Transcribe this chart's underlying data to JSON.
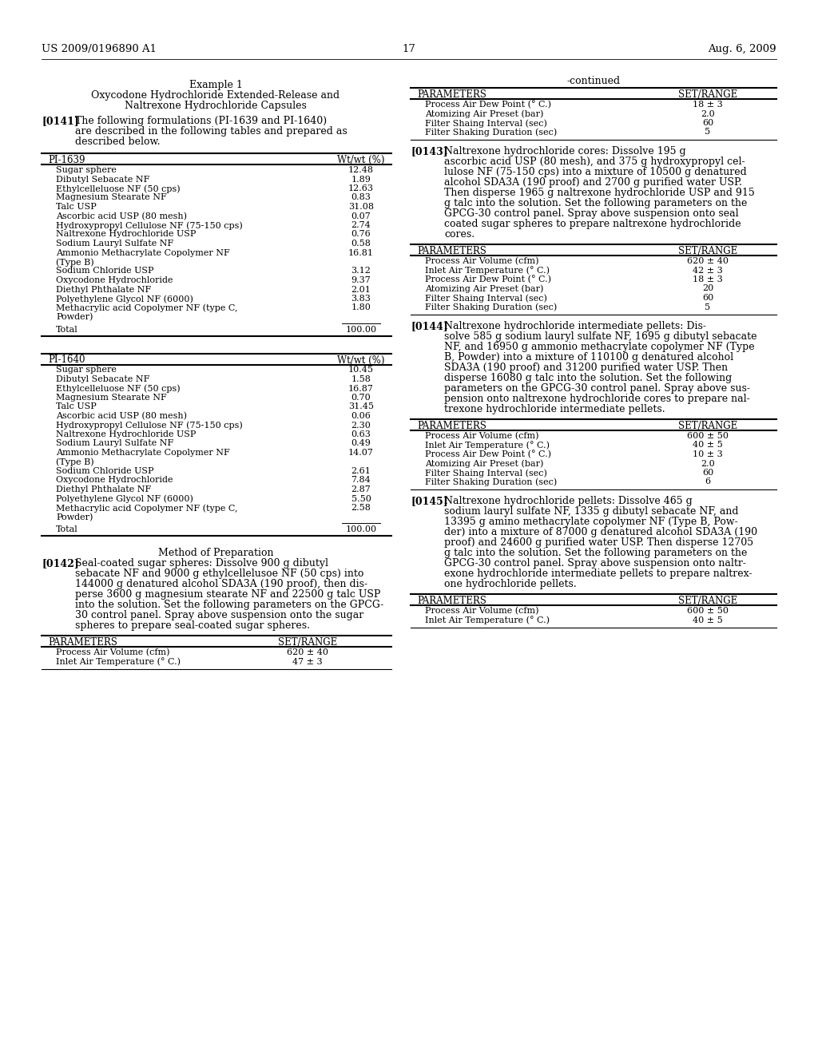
{
  "bg_color": "#ffffff",
  "text_color": "#000000",
  "header_left": "US 2009/0196890 A1",
  "header_right": "Aug. 6, 2009",
  "page_number": "17",
  "example_title": "Example 1",
  "example_subtitle1": "Oxycodone Hydrochloride Extended-Release and",
  "example_subtitle2": "Naltrexone Hydrochloride Capsules",
  "para141_label": "[0141]",
  "table1_header_left": "PI-1639",
  "table1_header_right": "Wt/wt (%)",
  "table1_rows": [
    [
      "Sugar sphere",
      "12.48"
    ],
    [
      "Dibutyl Sebacate NF",
      "1.89"
    ],
    [
      "Ethylcelleluose NF (50 cps)",
      "12.63"
    ],
    [
      "Magnesium Stearate NF",
      "0.83"
    ],
    [
      "Talc USP",
      "31.08"
    ],
    [
      "Ascorbic acid USP (80 mesh)",
      "0.07"
    ],
    [
      "Hydroxypropyl Cellulose NF (75-150 cps)",
      "2.74"
    ],
    [
      "Naltrexone Hydrochloride USP",
      "0.76"
    ],
    [
      "Sodium Lauryl Sulfate NF",
      "0.58"
    ],
    [
      "Ammonio Methacrylate Copolymer NF",
      "16.81"
    ],
    [
      "(Type B)",
      ""
    ],
    [
      "Sodium Chloride USP",
      "3.12"
    ],
    [
      "Oxycodone Hydrochloride",
      "9.37"
    ],
    [
      "Diethyl Phthalate NF",
      "2.01"
    ],
    [
      "Polyethylene Glycol NF (6000)",
      "3.83"
    ],
    [
      "Methacrylic acid Copolymer NF (type C,",
      "1.80"
    ],
    [
      "Powder)",
      ""
    ]
  ],
  "table1_total": "100.00",
  "table2_header_left": "PI-1640",
  "table2_header_right": "Wt/wt (%)",
  "table2_rows": [
    [
      "Sugar sphere",
      "10.45"
    ],
    [
      "Dibutyl Sebacate NF",
      "1.58"
    ],
    [
      "Ethylcelleluose NF (50 cps)",
      "16.87"
    ],
    [
      "Magnesium Stearate NF",
      "0.70"
    ],
    [
      "Talc USP",
      "31.45"
    ],
    [
      "Ascorbic acid USP (80 mesh)",
      "0.06"
    ],
    [
      "Hydroxypropyl Cellulose NF (75-150 cps)",
      "2.30"
    ],
    [
      "Naltrexone Hydrochloride USP",
      "0.63"
    ],
    [
      "Sodium Lauryl Sulfate NF",
      "0.49"
    ],
    [
      "Ammonio Methacrylate Copolymer NF",
      "14.07"
    ],
    [
      "(Type B)",
      ""
    ],
    [
      "Sodium Chloride USP",
      "2.61"
    ],
    [
      "Oxycodone Hydrochloride",
      "7.84"
    ],
    [
      "Diethyl Phthalate NF",
      "2.87"
    ],
    [
      "Polyethylene Glycol NF (6000)",
      "5.50"
    ],
    [
      "Methacrylic acid Copolymer NF (type C,",
      "2.58"
    ],
    [
      "Powder)",
      ""
    ]
  ],
  "table2_total": "100.00",
  "method_title": "Method of Preparation",
  "para142_label": "[0142]",
  "lines142": [
    "Seal-coated sugar spheres: Dissolve 900 g dibutyl",
    "sebacate NF and 9000 g ethylcellelusoe NF (50 cps) into",
    "144000 g denatured alcohol SDA3A (190 proof), then dis-",
    "perse 3600 g magnesium stearate NF and 22500 g talc USP",
    "into the solution. Set the following parameters on the GPCG-",
    "30 control panel. Spray above suspension onto the sugar",
    "spheres to prepare seal-coated sugar spheres."
  ],
  "params_table1_header": [
    "PARAMETERS",
    "SET/RANGE"
  ],
  "params_table1_rows": [
    [
      "Process Air Volume (cfm)",
      "620 ± 40"
    ],
    [
      "Inlet Air Temperature (° C.)",
      "47 ± 3"
    ]
  ],
  "right_continued": "-continued",
  "right_params1_header": [
    "PARAMETERS",
    "SET/RANGE"
  ],
  "right_params1_rows": [
    [
      "Process Air Dew Point (° C.)",
      "18 ± 3"
    ],
    [
      "Atomizing Air Preset (bar)",
      "2.0"
    ],
    [
      "Filter Shaing Interval (sec)",
      "60"
    ],
    [
      "Filter Shaking Duration (sec)",
      "5"
    ]
  ],
  "para143_label": "[0143]",
  "lines143": [
    "Naltrexone hydrochloride cores: Dissolve 195 g",
    "ascorbic acid USP (80 mesh), and 375 g hydroxypropyl cel-",
    "lulose NF (75-150 cps) into a mixture of 10500 g denatured",
    "alcohol SDA3A (190 proof) and 2700 g purified water USP.",
    "Then disperse 1965 g naltrexone hydrochloride USP and 915",
    "g talc into the solution. Set the following parameters on the",
    "GPCG-30 control panel. Spray above suspension onto seal",
    "coated sugar spheres to prepare naltrexone hydrochloride",
    "cores."
  ],
  "right_params2_header": [
    "PARAMETERS",
    "SET/RANGE"
  ],
  "right_params2_rows": [
    [
      "Process Air Volume (cfm)",
      "620 ± 40"
    ],
    [
      "Inlet Air Temperature (° C.)",
      "42 ± 3"
    ],
    [
      "Process Air Dew Point (° C.)",
      "18 ± 3"
    ],
    [
      "Atomizing Air Preset (bar)",
      "20"
    ],
    [
      "Filter Shaing Interval (sec)",
      "60"
    ],
    [
      "Filter Shaking Duration (sec)",
      "5"
    ]
  ],
  "para144_label": "[0144]",
  "lines144": [
    "Naltrexone hydrochloride intermediate pellets: Dis-",
    "solve 585 g sodium lauryl sulfate NF, 1695 g dibutyl sebacate",
    "NF, and 16950 g ammonio methacrylate copolymer NF (Type",
    "B, Powder) into a mixture of 110100 g denatured alcohol",
    "SDA3A (190 proof) and 31200 purified water USP. Then",
    "disperse 16080 g talc into the solution. Set the following",
    "parameters on the GPCG-30 control panel. Spray above sus-",
    "pension onto naltrexone hydrochloride cores to prepare nal-",
    "trexone hydrochloride intermediate pellets."
  ],
  "right_params3_header": [
    "PARAMETERS",
    "SET/RANGE"
  ],
  "right_params3_rows": [
    [
      "Process Air Volume (cfm)",
      "600 ± 50"
    ],
    [
      "Inlet Air Temperature (° C.)",
      "40 ± 5"
    ],
    [
      "Process Air Dew Point (° C.)",
      "10 ± 3"
    ],
    [
      "Atomizing Air Preset (bar)",
      "2.0"
    ],
    [
      "Filter Shaing Interval (sec)",
      "60"
    ],
    [
      "Filter Shaking Duration (sec)",
      "6"
    ]
  ],
  "para145_label": "[0145]",
  "lines145": [
    "Naltrexone hydrochloride pellets: Dissolve 465 g",
    "sodium lauryl sulfate NF, 1335 g dibutyl sebacate NF, and",
    "13395 g amino methacrylate copolymer NF (Type B, Pow-",
    "der) into a mixture of 87000 g denatured alcohol SDA3A (190",
    "proof) and 24600 g purified water USP. Then disperse 12705",
    "g talc into the solution. Set the following parameters on the",
    "GPCG-30 control panel. Spray above suspension onto naltr-",
    "exone hydrochloride intermediate pellets to prepare naltrex-",
    "one hydrochloride pellets."
  ],
  "right_params4_header": [
    "PARAMETERS",
    "SET/RANGE"
  ],
  "right_params4_rows": [
    [
      "Process Air Volume (cfm)",
      "600 ± 50"
    ],
    [
      "Inlet Air Temperature (° C.)",
      "40 ± 5"
    ]
  ],
  "lines141": [
    "The following formulations (PI-1639 and PI-1640)",
    "are described in the following tables and prepared as",
    "described below."
  ]
}
